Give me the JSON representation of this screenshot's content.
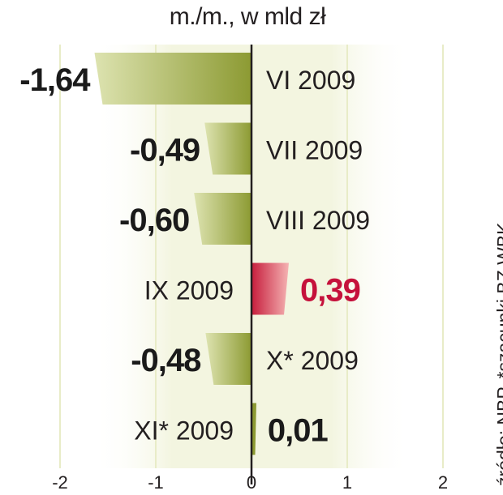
{
  "chart_data": {
    "type": "bar",
    "orientation": "horizontal",
    "title": "m./m., w mld zł",
    "categories": [
      "VI 2009",
      "VII 2009",
      "VIII 2009",
      "IX 2009",
      "X* 2009",
      "XI* 2009"
    ],
    "values": [
      -1.64,
      -0.49,
      -0.6,
      0.39,
      -0.48,
      0.01
    ],
    "value_labels": [
      "-1,64",
      "-0,49",
      "-0,60",
      "0,39",
      "-0,48",
      "0,01"
    ],
    "xlim": [
      -2,
      2
    ],
    "x_ticks": [
      -2,
      -1,
      0,
      1,
      2
    ],
    "x_tick_labels": [
      "-2",
      "-1",
      "0",
      "1",
      "2"
    ],
    "grid": "vertical",
    "colors": {
      "negative_bar_light": "#d9dfa8",
      "negative_bar_dark": "#8c9a32",
      "positive_bar_light": "#f2a0a0",
      "positive_bar_dark": "#c61d3c",
      "positive_label": "#c5113b",
      "negative_label": "#1a1a1a",
      "background_band": "#f0f2d8",
      "grid": "#e8ecc8",
      "axis": "#231f20"
    }
  },
  "source": "źródło: NBP, *szacunki BZ WBK"
}
